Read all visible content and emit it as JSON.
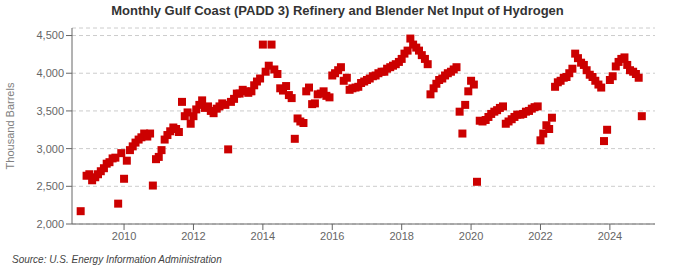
{
  "chart_data": {
    "type": "scatter",
    "title": "Monthly Gulf Coast (PADD 3) Refinery and Blender Net Input of Hydrogen",
    "ylabel": "Thousand Barrels",
    "annotations": [
      "Source: U.S. Energy Information Administration"
    ],
    "color": "#cc0000",
    "marker": "square",
    "grid": "y",
    "xlim": [
      2008.5,
      2025.3
    ],
    "xticks": [
      2010,
      2012,
      2014,
      2016,
      2018,
      2020,
      2022,
      2024
    ],
    "ylim": [
      2000,
      4600
    ],
    "yticks": [
      {
        "value": 2000,
        "label": "2,000"
      },
      {
        "value": 2500,
        "label": "2,500"
      },
      {
        "value": 3000,
        "label": "3,000"
      },
      {
        "value": 3500,
        "label": "3,500"
      },
      {
        "value": 4000,
        "label": "4,000"
      },
      {
        "value": 4500,
        "label": "4,500"
      }
    ],
    "x": [
      2008.75,
      2008.92,
      2009.0,
      2009.08,
      2009.17,
      2009.25,
      2009.33,
      2009.42,
      2009.5,
      2009.58,
      2009.67,
      2009.75,
      2009.83,
      2009.92,
      2010.0,
      2010.08,
      2010.17,
      2010.25,
      2010.33,
      2010.42,
      2010.5,
      2010.58,
      2010.67,
      2010.75,
      2010.83,
      2010.92,
      2011.0,
      2011.08,
      2011.17,
      2011.25,
      2011.33,
      2011.42,
      2011.5,
      2011.58,
      2011.67,
      2011.75,
      2011.83,
      2011.92,
      2012.0,
      2012.08,
      2012.17,
      2012.25,
      2012.33,
      2012.42,
      2012.5,
      2012.58,
      2012.67,
      2012.75,
      2012.83,
      2012.92,
      2013.0,
      2013.08,
      2013.17,
      2013.25,
      2013.33,
      2013.42,
      2013.5,
      2013.58,
      2013.67,
      2013.75,
      2013.83,
      2013.92,
      2014.0,
      2014.08,
      2014.17,
      2014.25,
      2014.33,
      2014.42,
      2014.5,
      2014.58,
      2014.67,
      2014.75,
      2014.83,
      2014.92,
      2015.0,
      2015.08,
      2015.17,
      2015.25,
      2015.33,
      2015.42,
      2015.5,
      2015.58,
      2015.67,
      2015.75,
      2015.83,
      2015.92,
      2016.0,
      2016.08,
      2016.17,
      2016.25,
      2016.33,
      2016.42,
      2016.5,
      2016.58,
      2016.67,
      2016.75,
      2016.83,
      2016.92,
      2017.0,
      2017.08,
      2017.17,
      2017.25,
      2017.33,
      2017.42,
      2017.5,
      2017.58,
      2017.67,
      2017.75,
      2017.83,
      2017.92,
      2018.0,
      2018.08,
      2018.17,
      2018.25,
      2018.33,
      2018.42,
      2018.5,
      2018.58,
      2018.67,
      2018.75,
      2018.83,
      2018.92,
      2019.0,
      2019.08,
      2019.17,
      2019.25,
      2019.33,
      2019.42,
      2019.5,
      2019.58,
      2019.67,
      2019.75,
      2019.83,
      2019.92,
      2020.0,
      2020.08,
      2020.17,
      2020.25,
      2020.33,
      2020.42,
      2020.5,
      2020.58,
      2020.67,
      2020.75,
      2020.83,
      2020.92,
      2021.0,
      2021.08,
      2021.17,
      2021.25,
      2021.33,
      2021.42,
      2021.5,
      2021.58,
      2021.67,
      2021.75,
      2021.83,
      2021.92,
      2022.0,
      2022.08,
      2022.17,
      2022.25,
      2022.33,
      2022.42,
      2022.5,
      2022.58,
      2022.67,
      2022.75,
      2022.83,
      2022.92,
      2023.0,
      2023.08,
      2023.17,
      2023.25,
      2023.33,
      2023.42,
      2023.5,
      2023.58,
      2023.67,
      2023.75,
      2023.83,
      2023.92,
      2024.0,
      2024.08,
      2024.17,
      2024.25,
      2024.33,
      2024.42,
      2024.5,
      2024.58,
      2024.67,
      2024.75,
      2024.83,
      2024.92
    ],
    "values": [
      2170,
      2640,
      2660,
      2580,
      2620,
      2660,
      2700,
      2740,
      2800,
      2820,
      2870,
      2880,
      2270,
      2940,
      2600,
      2840,
      2980,
      3030,
      3080,
      3120,
      3150,
      3200,
      3160,
      3200,
      2510,
      2860,
      2890,
      2980,
      3120,
      3180,
      3230,
      3280,
      3260,
      3220,
      3620,
      3430,
      3480,
      3330,
      3430,
      3520,
      3580,
      3640,
      3540,
      3560,
      3500,
      3470,
      3530,
      3560,
      3600,
      3580,
      2990,
      3620,
      3660,
      3730,
      3730,
      3780,
      3760,
      3740,
      3760,
      3840,
      3890,
      3930,
      4380,
      4020,
      4100,
      4380,
      4050,
      3990,
      3800,
      3770,
      3830,
      3710,
      3670,
      3130,
      3400,
      3360,
      3340,
      3760,
      3810,
      3590,
      3600,
      3720,
      3730,
      3760,
      3700,
      3680,
      3970,
      4000,
      4040,
      4080,
      3900,
      3940,
      3780,
      3800,
      3810,
      3820,
      3870,
      3890,
      3910,
      3930,
      3960,
      3970,
      4000,
      4020,
      4020,
      4060,
      4080,
      4100,
      4120,
      4150,
      4190,
      4260,
      4300,
      4460,
      4380,
      4340,
      4300,
      4240,
      4190,
      4120,
      3720,
      3800,
      3860,
      3910,
      3930,
      3970,
      4000,
      4020,
      4050,
      4080,
      3490,
      3200,
      3580,
      3760,
      3900,
      3850,
      2560,
      3370,
      3360,
      3380,
      3420,
      3460,
      3490,
      3510,
      3540,
      3560,
      3330,
      3360,
      3390,
      3420,
      3450,
      3450,
      3460,
      3490,
      3500,
      3530,
      3550,
      3560,
      3110,
      3200,
      3310,
      3260,
      3410,
      3820,
      3880,
      3900,
      3940,
      3950,
      4000,
      4060,
      4260,
      4200,
      4140,
      4110,
      4040,
      3980,
      3950,
      3900,
      3850,
      3810,
      3100,
      3250,
      3910,
      3960,
      4090,
      4150,
      4190,
      4210,
      4110,
      4040,
      4020,
      3990,
      3940,
      3430
    ]
  }
}
